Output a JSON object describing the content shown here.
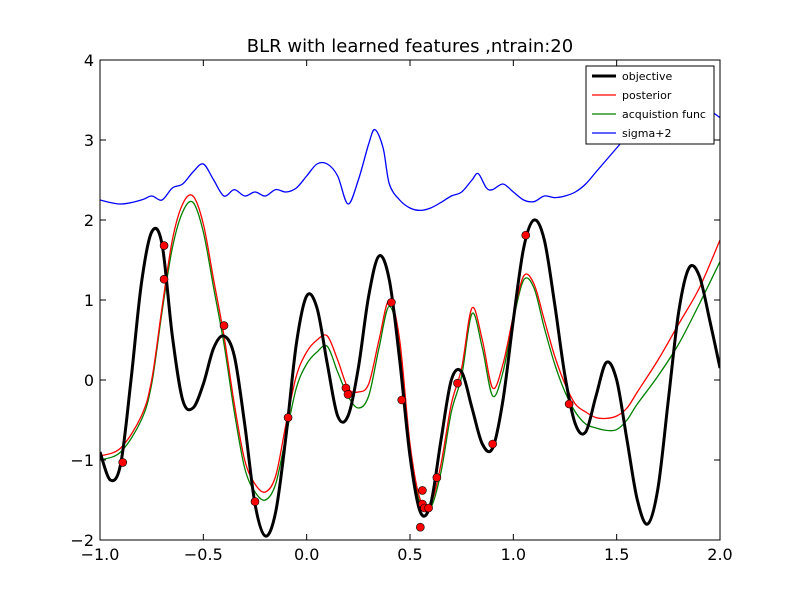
{
  "chart_data": {
    "type": "line",
    "title": "BLR with learned features ,ntrain:20",
    "xlabel": "",
    "ylabel": "",
    "xlim": [
      -1.0,
      2.0
    ],
    "ylim": [
      -2,
      4
    ],
    "x_ticks": [
      "−1.0",
      "−0.5",
      "0.0",
      "0.5",
      "1.0",
      "1.5",
      "2.0"
    ],
    "y_ticks": [
      "−2",
      "−1",
      "0",
      "1",
      "2",
      "3",
      "4"
    ],
    "grid": false,
    "legend_position": "top-right",
    "series": [
      {
        "name": "objective",
        "color": "#000000",
        "points": [
          [
            -1.0,
            -0.9
          ],
          [
            -0.95,
            -1.25
          ],
          [
            -0.9,
            -1.05
          ],
          [
            -0.85,
            0.0
          ],
          [
            -0.8,
            1.2
          ],
          [
            -0.75,
            1.85
          ],
          [
            -0.7,
            1.7
          ],
          [
            -0.65,
            0.55
          ],
          [
            -0.6,
            -0.25
          ],
          [
            -0.55,
            -0.35
          ],
          [
            -0.5,
            -0.05
          ],
          [
            -0.45,
            0.4
          ],
          [
            -0.4,
            0.55
          ],
          [
            -0.35,
            0.3
          ],
          [
            -0.3,
            -0.55
          ],
          [
            -0.25,
            -1.55
          ],
          [
            -0.2,
            -1.95
          ],
          [
            -0.15,
            -1.65
          ],
          [
            -0.1,
            -0.7
          ],
          [
            -0.05,
            0.45
          ],
          [
            0.0,
            1.05
          ],
          [
            0.05,
            0.9
          ],
          [
            0.1,
            0.2
          ],
          [
            0.15,
            -0.45
          ],
          [
            0.2,
            -0.45
          ],
          [
            0.25,
            0.15
          ],
          [
            0.3,
            1.05
          ],
          [
            0.35,
            1.55
          ],
          [
            0.4,
            1.25
          ],
          [
            0.45,
            0.25
          ],
          [
            0.5,
            -0.95
          ],
          [
            0.55,
            -1.65
          ],
          [
            0.6,
            -1.55
          ],
          [
            0.65,
            -0.75
          ],
          [
            0.7,
            0.0
          ],
          [
            0.75,
            0.1
          ],
          [
            0.8,
            -0.35
          ],
          [
            0.85,
            -0.8
          ],
          [
            0.9,
            -0.85
          ],
          [
            0.95,
            -0.25
          ],
          [
            1.0,
            0.75
          ],
          [
            1.05,
            1.65
          ],
          [
            1.1,
            2.0
          ],
          [
            1.15,
            1.75
          ],
          [
            1.2,
            0.95
          ],
          [
            1.25,
            0.05
          ],
          [
            1.3,
            -0.55
          ],
          [
            1.35,
            -0.65
          ],
          [
            1.4,
            -0.2
          ],
          [
            1.45,
            0.22
          ],
          [
            1.5,
            0.0
          ],
          [
            1.55,
            -0.75
          ],
          [
            1.6,
            -1.5
          ],
          [
            1.65,
            -1.8
          ],
          [
            1.7,
            -1.35
          ],
          [
            1.75,
            -0.25
          ],
          [
            1.8,
            0.85
          ],
          [
            1.85,
            1.4
          ],
          [
            1.9,
            1.3
          ],
          [
            1.95,
            0.75
          ],
          [
            2.0,
            0.15
          ]
        ]
      },
      {
        "name": "posterior",
        "color": "#ff0000",
        "points": [
          [
            -1.0,
            -0.95
          ],
          [
            -0.9,
            -0.85
          ],
          [
            -0.8,
            -0.45
          ],
          [
            -0.75,
            0.0
          ],
          [
            -0.7,
            0.9
          ],
          [
            -0.65,
            1.75
          ],
          [
            -0.6,
            2.2
          ],
          [
            -0.55,
            2.3
          ],
          [
            -0.5,
            1.95
          ],
          [
            -0.45,
            1.25
          ],
          [
            -0.4,
            0.55
          ],
          [
            -0.35,
            -0.3
          ],
          [
            -0.3,
            -1.0
          ],
          [
            -0.25,
            -1.3
          ],
          [
            -0.2,
            -1.4
          ],
          [
            -0.15,
            -1.2
          ],
          [
            -0.1,
            -0.55
          ],
          [
            -0.05,
            0.05
          ],
          [
            0.0,
            0.35
          ],
          [
            0.05,
            0.5
          ],
          [
            0.1,
            0.55
          ],
          [
            0.15,
            0.25
          ],
          [
            0.2,
            -0.1
          ],
          [
            0.25,
            -0.15
          ],
          [
            0.3,
            -0.05
          ],
          [
            0.35,
            0.5
          ],
          [
            0.4,
            1.0
          ],
          [
            0.45,
            0.5
          ],
          [
            0.5,
            -0.8
          ],
          [
            0.55,
            -1.5
          ],
          [
            0.6,
            -1.55
          ],
          [
            0.65,
            -1.05
          ],
          [
            0.7,
            -0.3
          ],
          [
            0.75,
            0.15
          ],
          [
            0.8,
            0.9
          ],
          [
            0.85,
            0.5
          ],
          [
            0.9,
            -0.1
          ],
          [
            0.95,
            0.2
          ],
          [
            1.0,
            0.8
          ],
          [
            1.05,
            1.3
          ],
          [
            1.1,
            1.2
          ],
          [
            1.15,
            0.75
          ],
          [
            1.2,
            0.3
          ],
          [
            1.25,
            -0.05
          ],
          [
            1.3,
            -0.3
          ],
          [
            1.35,
            -0.4
          ],
          [
            1.4,
            -0.47
          ],
          [
            1.45,
            -0.48
          ],
          [
            1.5,
            -0.45
          ],
          [
            1.55,
            -0.35
          ],
          [
            1.6,
            -0.15
          ],
          [
            1.7,
            0.25
          ],
          [
            1.8,
            0.7
          ],
          [
            1.9,
            1.15
          ],
          [
            2.0,
            1.75
          ]
        ]
      },
      {
        "name": "acquistion func",
        "color": "#008000",
        "points": [
          [
            -1.0,
            -1.0
          ],
          [
            -0.9,
            -0.9
          ],
          [
            -0.8,
            -0.5
          ],
          [
            -0.75,
            -0.05
          ],
          [
            -0.7,
            0.85
          ],
          [
            -0.65,
            1.65
          ],
          [
            -0.6,
            2.1
          ],
          [
            -0.55,
            2.22
          ],
          [
            -0.5,
            1.85
          ],
          [
            -0.45,
            1.15
          ],
          [
            -0.4,
            0.45
          ],
          [
            -0.35,
            -0.4
          ],
          [
            -0.3,
            -1.1
          ],
          [
            -0.25,
            -1.4
          ],
          [
            -0.2,
            -1.5
          ],
          [
            -0.15,
            -1.3
          ],
          [
            -0.1,
            -0.7
          ],
          [
            -0.05,
            -0.1
          ],
          [
            0.0,
            0.2
          ],
          [
            0.05,
            0.35
          ],
          [
            0.1,
            0.42
          ],
          [
            0.15,
            0.1
          ],
          [
            0.2,
            -0.2
          ],
          [
            0.25,
            -0.35
          ],
          [
            0.3,
            -0.2
          ],
          [
            0.35,
            0.4
          ],
          [
            0.4,
            0.92
          ],
          [
            0.45,
            0.4
          ],
          [
            0.5,
            -0.9
          ],
          [
            0.55,
            -1.55
          ],
          [
            0.6,
            -1.6
          ],
          [
            0.65,
            -1.15
          ],
          [
            0.7,
            -0.4
          ],
          [
            0.75,
            0.05
          ],
          [
            0.8,
            0.83
          ],
          [
            0.85,
            0.4
          ],
          [
            0.9,
            -0.2
          ],
          [
            0.95,
            0.1
          ],
          [
            1.0,
            0.75
          ],
          [
            1.05,
            1.25
          ],
          [
            1.1,
            1.15
          ],
          [
            1.15,
            0.65
          ],
          [
            1.2,
            0.2
          ],
          [
            1.25,
            -0.15
          ],
          [
            1.3,
            -0.4
          ],
          [
            1.35,
            -0.55
          ],
          [
            1.4,
            -0.6
          ],
          [
            1.45,
            -0.63
          ],
          [
            1.5,
            -0.62
          ],
          [
            1.55,
            -0.5
          ],
          [
            1.6,
            -0.3
          ],
          [
            1.7,
            0.05
          ],
          [
            1.8,
            0.45
          ],
          [
            1.9,
            0.95
          ],
          [
            2.0,
            1.48
          ]
        ]
      },
      {
        "name": "sigma+2",
        "color": "#0000ff",
        "points": [
          [
            -1.0,
            2.25
          ],
          [
            -0.9,
            2.2
          ],
          [
            -0.8,
            2.25
          ],
          [
            -0.75,
            2.3
          ],
          [
            -0.7,
            2.25
          ],
          [
            -0.65,
            2.4
          ],
          [
            -0.6,
            2.45
          ],
          [
            -0.55,
            2.6
          ],
          [
            -0.5,
            2.7
          ],
          [
            -0.45,
            2.5
          ],
          [
            -0.4,
            2.3
          ],
          [
            -0.35,
            2.38
          ],
          [
            -0.3,
            2.3
          ],
          [
            -0.25,
            2.35
          ],
          [
            -0.2,
            2.3
          ],
          [
            -0.15,
            2.38
          ],
          [
            -0.1,
            2.35
          ],
          [
            -0.05,
            2.4
          ],
          [
            0.0,
            2.55
          ],
          [
            0.05,
            2.7
          ],
          [
            0.1,
            2.7
          ],
          [
            0.15,
            2.55
          ],
          [
            0.2,
            2.2
          ],
          [
            0.25,
            2.5
          ],
          [
            0.3,
            2.95
          ],
          [
            0.33,
            3.13
          ],
          [
            0.37,
            2.9
          ],
          [
            0.4,
            2.45
          ],
          [
            0.45,
            2.25
          ],
          [
            0.5,
            2.15
          ],
          [
            0.55,
            2.12
          ],
          [
            0.6,
            2.15
          ],
          [
            0.65,
            2.22
          ],
          [
            0.7,
            2.3
          ],
          [
            0.75,
            2.35
          ],
          [
            0.8,
            2.5
          ],
          [
            0.83,
            2.58
          ],
          [
            0.87,
            2.4
          ],
          [
            0.9,
            2.38
          ],
          [
            0.95,
            2.45
          ],
          [
            1.0,
            2.35
          ],
          [
            1.05,
            2.25
          ],
          [
            1.1,
            2.23
          ],
          [
            1.15,
            2.3
          ],
          [
            1.2,
            2.28
          ],
          [
            1.25,
            2.3
          ],
          [
            1.3,
            2.35
          ],
          [
            1.35,
            2.45
          ],
          [
            1.4,
            2.6
          ],
          [
            1.45,
            2.75
          ],
          [
            1.5,
            2.9
          ],
          [
            1.55,
            3.05
          ],
          [
            1.6,
            3.2
          ],
          [
            1.7,
            3.42
          ],
          [
            1.8,
            3.5
          ],
          [
            1.9,
            3.45
          ],
          [
            2.0,
            3.28
          ]
        ]
      }
    ],
    "scatter": {
      "color": "#ff0000",
      "points": [
        [
          -0.89,
          -1.03
        ],
        [
          -0.69,
          1.68
        ],
        [
          -0.69,
          1.26
        ],
        [
          -0.4,
          0.68
        ],
        [
          -0.25,
          -1.52
        ],
        [
          -0.09,
          -0.47
        ],
        [
          0.19,
          -0.1
        ],
        [
          0.2,
          -0.18
        ],
        [
          0.41,
          0.97
        ],
        [
          0.46,
          -0.25
        ],
        [
          0.55,
          -1.84
        ],
        [
          0.56,
          -1.38
        ],
        [
          0.56,
          -1.55
        ],
        [
          0.57,
          -1.6
        ],
        [
          0.59,
          -1.6
        ],
        [
          0.63,
          -1.22
        ],
        [
          0.73,
          -0.04
        ],
        [
          0.9,
          -0.8
        ],
        [
          1.06,
          1.81
        ],
        [
          1.27,
          -0.3
        ]
      ]
    }
  }
}
